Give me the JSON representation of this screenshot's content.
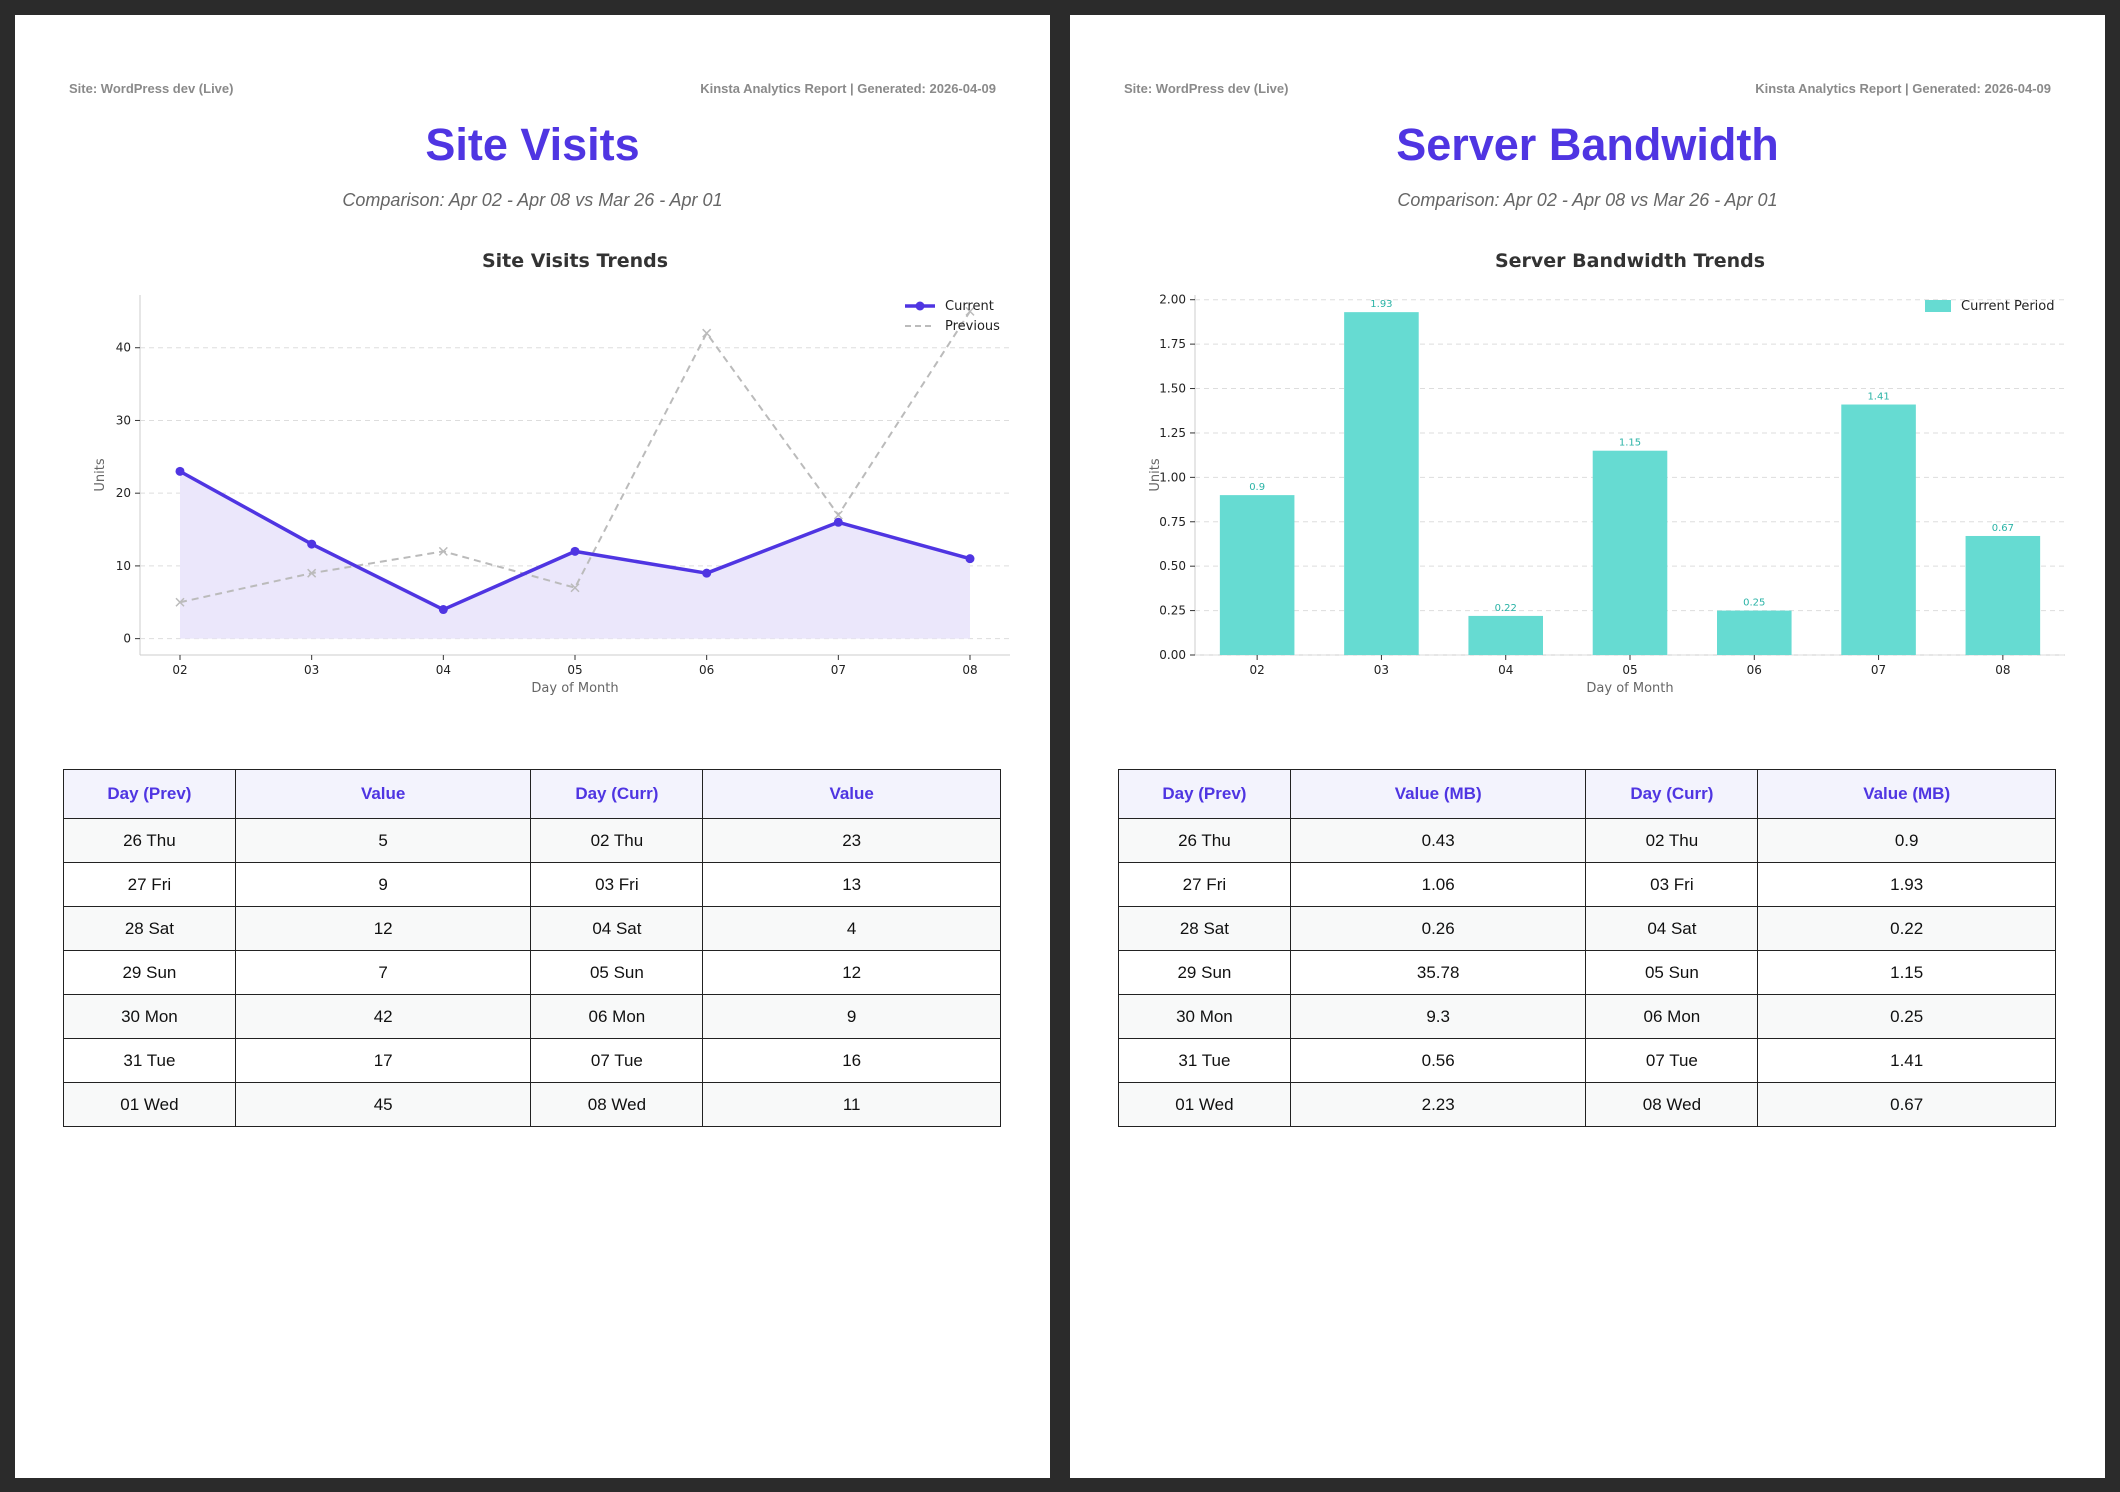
{
  "pages": [
    {
      "site_label": "Site: WordPress dev (Live)",
      "report_label": "Kinsta Analytics Report | Generated: 2026-04-09",
      "title": "Site Visits",
      "subtitle": "Comparison: Apr 02 - Apr 08 vs Mar 26 - Apr 01",
      "table": {
        "headers": [
          "Day (Prev)",
          "Value",
          "Day (Curr)",
          "Value"
        ],
        "rows": [
          [
            "26 Thu",
            "5",
            "02 Thu",
            "23"
          ],
          [
            "27 Fri",
            "9",
            "03 Fri",
            "13"
          ],
          [
            "28 Sat",
            "12",
            "04 Sat",
            "4"
          ],
          [
            "29 Sun",
            "7",
            "05 Sun",
            "12"
          ],
          [
            "30 Mon",
            "42",
            "06 Mon",
            "9"
          ],
          [
            "31 Tue",
            "17",
            "07 Tue",
            "16"
          ],
          [
            "01 Wed",
            "45",
            "08 Wed",
            "11"
          ]
        ]
      }
    },
    {
      "site_label": "Site: WordPress dev (Live)",
      "report_label": "Kinsta Analytics Report | Generated: 2026-04-09",
      "title": "Server Bandwidth",
      "subtitle": "Comparison: Apr 02 - Apr 08 vs Mar 26 - Apr 01",
      "table": {
        "headers": [
          "Day (Prev)",
          "Value (MB)",
          "Day (Curr)",
          "Value (MB)"
        ],
        "rows": [
          [
            "26 Thu",
            "0.43",
            "02 Thu",
            "0.9"
          ],
          [
            "27 Fri",
            "1.06",
            "03 Fri",
            "1.93"
          ],
          [
            "28 Sat",
            "0.26",
            "04 Sat",
            "0.22"
          ],
          [
            "29 Sun",
            "35.78",
            "05 Sun",
            "1.15"
          ],
          [
            "30 Mon",
            "9.3",
            "06 Mon",
            "0.25"
          ],
          [
            "31 Tue",
            "0.56",
            "07 Tue",
            "1.41"
          ],
          [
            "01 Wed",
            "2.23",
            "08 Wed",
            "0.67"
          ]
        ]
      }
    }
  ],
  "chart_data": [
    {
      "type": "line",
      "title": "Site Visits Trends",
      "xlabel": "Day of Month",
      "ylabel": "Units",
      "categories": [
        "02",
        "03",
        "04",
        "05",
        "06",
        "07",
        "08"
      ],
      "ylim": [
        -2.25,
        47.25
      ],
      "yticks": [
        0,
        10,
        20,
        30,
        40
      ],
      "grid": true,
      "legend": "top-right",
      "series": [
        {
          "name": "Current",
          "values": [
            23,
            13,
            4,
            12,
            9,
            16,
            11
          ],
          "color": "#4f35e2",
          "fill": "#ebe7fb",
          "style": "solid"
        },
        {
          "name": "Previous",
          "values": [
            5,
            9,
            12,
            7,
            42,
            17,
            45
          ],
          "color": "#bbbbbb",
          "style": "dashed"
        }
      ]
    },
    {
      "type": "bar",
      "title": "Server Bandwidth Trends",
      "xlabel": "Day of Month",
      "ylabel": "Units",
      "categories": [
        "02",
        "03",
        "04",
        "05",
        "06",
        "07",
        "08"
      ],
      "ylim": [
        0,
        2.0265
      ],
      "yticks": [
        "0.00",
        "0.25",
        "0.50",
        "0.75",
        "1.00",
        "1.25",
        "1.50",
        "1.75",
        "2.00"
      ],
      "grid": true,
      "legend": "top-right",
      "series": [
        {
          "name": "Current Period",
          "values": [
            0.9,
            1.93,
            0.22,
            1.15,
            0.25,
            1.41,
            0.67
          ],
          "color": "#66dbd2"
        }
      ],
      "data_labels": [
        "0.9",
        "1.93",
        "0.22",
        "1.15",
        "0.25",
        "1.41",
        "0.67"
      ]
    }
  ]
}
